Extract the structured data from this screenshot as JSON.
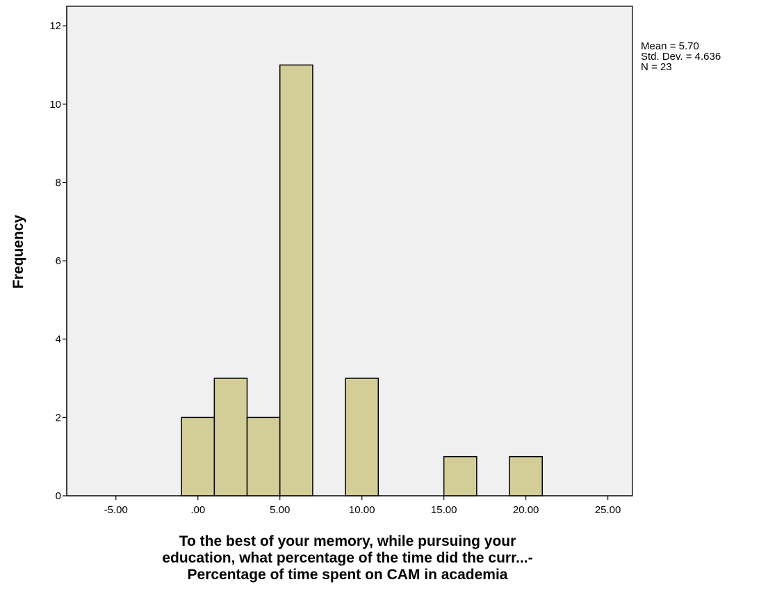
{
  "chart_data": {
    "type": "bar",
    "subtype": "histogram",
    "bins": [
      {
        "start": -1.0,
        "end": 1.0,
        "count": 2
      },
      {
        "start": 1.0,
        "end": 3.0,
        "count": 3
      },
      {
        "start": 3.0,
        "end": 5.0,
        "count": 2
      },
      {
        "start": 5.0,
        "end": 7.0,
        "count": 11
      },
      {
        "start": 9.0,
        "end": 11.0,
        "count": 3
      },
      {
        "start": 15.0,
        "end": 17.0,
        "count": 1
      },
      {
        "start": 19.0,
        "end": 21.0,
        "count": 1
      }
    ],
    "xlim": [
      -8.0,
      26.5
    ],
    "ylim": [
      0,
      12.5
    ],
    "xticks": [
      {
        "value": -5,
        "label": "-5.00"
      },
      {
        "value": 0,
        "label": ".00"
      },
      {
        "value": 5,
        "label": "5.00"
      },
      {
        "value": 10,
        "label": "10.00"
      },
      {
        "value": 15,
        "label": "15.00"
      },
      {
        "value": 20,
        "label": "20.00"
      },
      {
        "value": 25,
        "label": "25.00"
      }
    ],
    "yticks": [
      {
        "value": 0,
        "label": "0"
      },
      {
        "value": 2,
        "label": "2"
      },
      {
        "value": 4,
        "label": "4"
      },
      {
        "value": 6,
        "label": "6"
      },
      {
        "value": 8,
        "label": "8"
      },
      {
        "value": 10,
        "label": "10"
      },
      {
        "value": 12,
        "label": "12"
      }
    ],
    "ylabel": "Frequency",
    "xlabel_lines": [
      "To the best of your memory, while pursuing your",
      "education, what percentage of the time did the curr...-",
      "Percentage of time spent on CAM in academia"
    ],
    "stats": {
      "mean": "Mean = 5.70",
      "std": "Std. Dev. = 4.636",
      "n": "N = 23"
    },
    "grid": false,
    "colors": {
      "plot_background": "#f0f0f0",
      "bar_fill": "#d3ce97",
      "bar_stroke": "#000000",
      "axis": "#000000"
    }
  }
}
